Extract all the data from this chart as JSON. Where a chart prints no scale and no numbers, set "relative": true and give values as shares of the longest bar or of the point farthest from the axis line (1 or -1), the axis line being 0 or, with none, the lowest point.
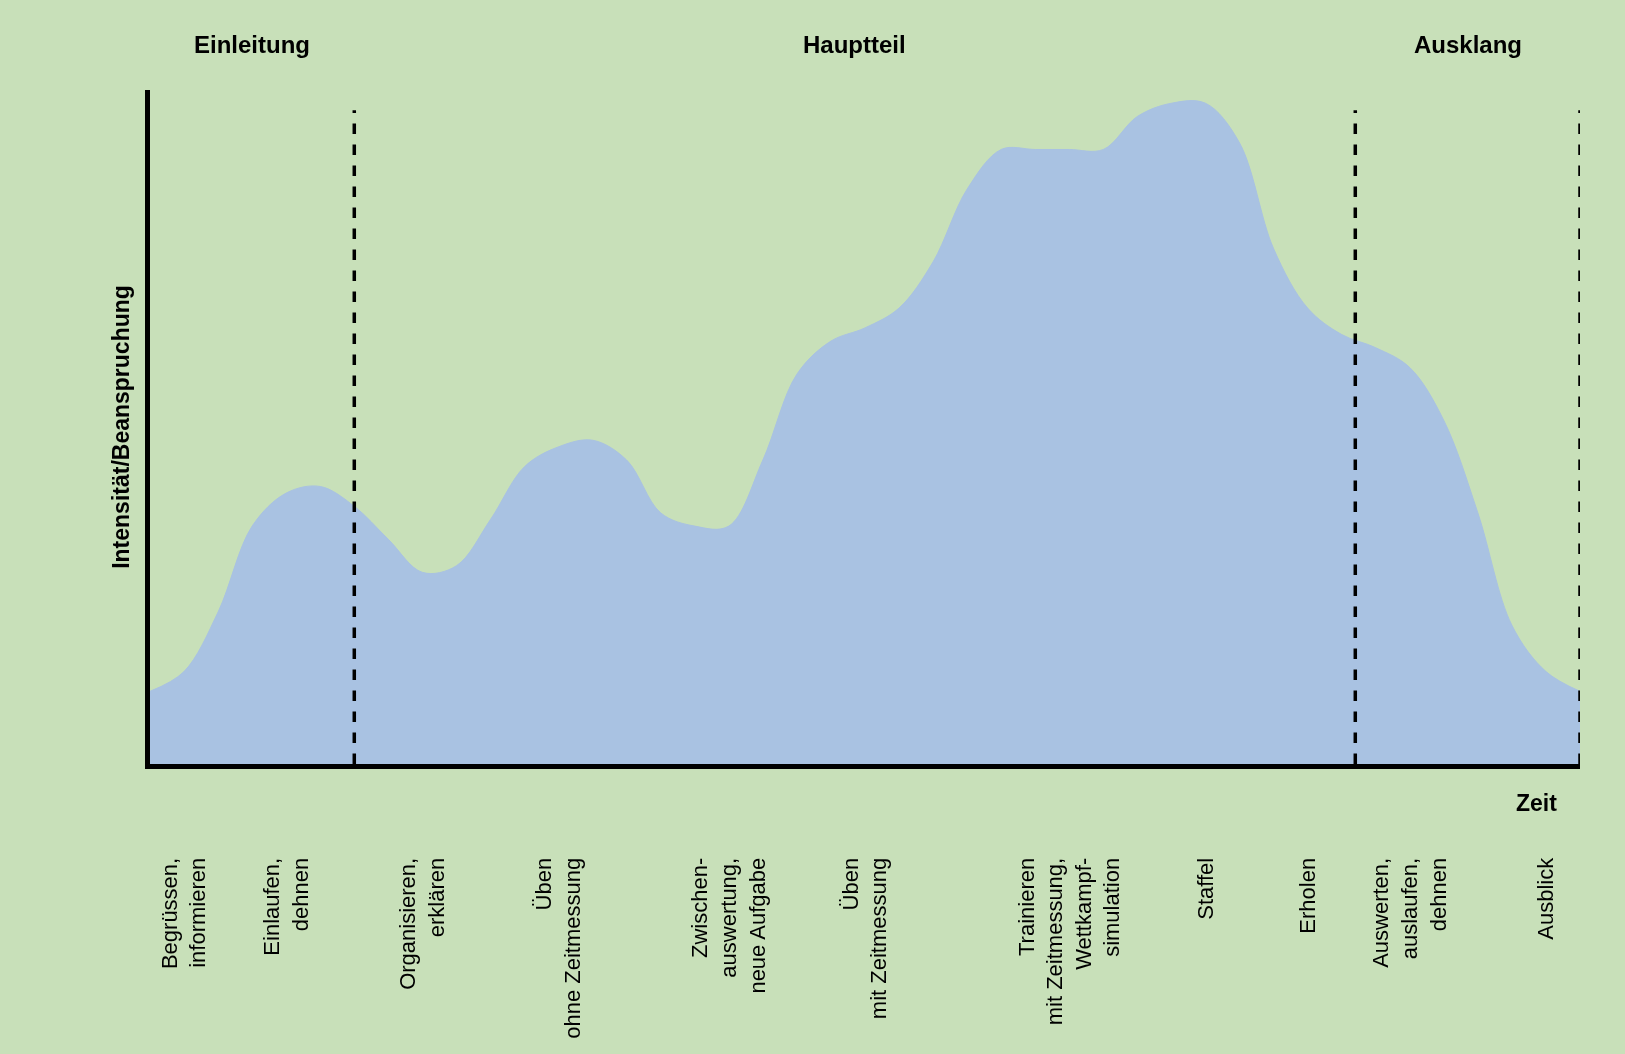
{
  "chart_data": {
    "type": "area",
    "relative": true,
    "grid": "x",
    "ylabel": "Intensität/Beanspruchung",
    "xlabel": "Zeit",
    "categories": [
      null,
      "Begrüssen,\ninformieren",
      null,
      null,
      "Einlaufen,\ndehnen",
      null,
      null,
      null,
      "Organisieren,\nerklären",
      null,
      null,
      null,
      "Üben\nohne Zeitmessung",
      null,
      null,
      null,
      null,
      "Zwischen-\nauswertung,\nneue Aufgabe",
      null,
      null,
      null,
      "Üben\nmit Zeitmessung",
      null,
      null,
      null,
      null,
      null,
      "Trainieren\nmit Zeitmessung,\nWettkampf-\nsimulation",
      null,
      null,
      null,
      "Staffel",
      null,
      null,
      "Erholen",
      null,
      null,
      "Auswerten,\nauslaufen,\ndehnen",
      null,
      null,
      null,
      "Ausblick",
      null
    ],
    "values": [
      0.11,
      0.14,
      0.23,
      0.36,
      0.41,
      0.42,
      0.39,
      0.34,
      0.29,
      0.3,
      0.37,
      0.45,
      0.48,
      0.49,
      0.46,
      0.38,
      0.36,
      0.36,
      0.46,
      0.59,
      0.64,
      0.66,
      0.69,
      0.76,
      0.87,
      0.93,
      0.93,
      0.93,
      0.93,
      0.98,
      1.0,
      1.0,
      0.94,
      0.78,
      0.69,
      0.65,
      0.63,
      0.6,
      0.52,
      0.38,
      0.21,
      0.14,
      0.11
    ],
    "color": "#a9c2e2",
    "annotations": [
      "Einleitung",
      "Hauptteil",
      "Ausklang"
    ]
  }
}
